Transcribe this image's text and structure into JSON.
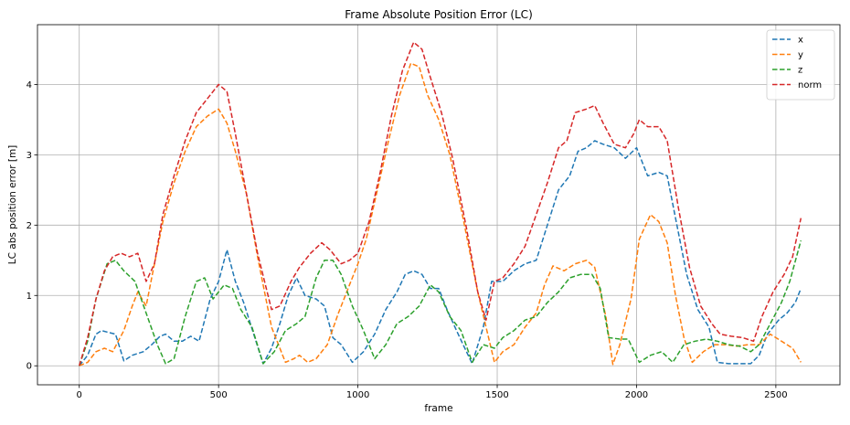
{
  "chart_data": {
    "type": "line",
    "title": "Frame Absolute Position Error (LC)",
    "xlabel": "frame",
    "ylabel": "LC abs position error [m]",
    "xlim": [
      -150,
      2730
    ],
    "ylim": [
      -0.27,
      4.85
    ],
    "xticks": [
      0,
      500,
      1000,
      1500,
      2000,
      2500
    ],
    "yticks": [
      0,
      1,
      2,
      3,
      4
    ],
    "grid": true,
    "legend": "top-right",
    "series": [
      {
        "name": "x",
        "color": "#1f77b4",
        "points": [
          [
            0,
            0
          ],
          [
            30,
            0.15
          ],
          [
            60,
            0.45
          ],
          [
            80,
            0.5
          ],
          [
            100,
            0.48
          ],
          [
            130,
            0.45
          ],
          [
            160,
            0.07
          ],
          [
            190,
            0.15
          ],
          [
            230,
            0.2
          ],
          [
            260,
            0.3
          ],
          [
            290,
            0.42
          ],
          [
            310,
            0.45
          ],
          [
            340,
            0.35
          ],
          [
            370,
            0.35
          ],
          [
            400,
            0.42
          ],
          [
            430,
            0.35
          ],
          [
            470,
            0.95
          ],
          [
            500,
            1.2
          ],
          [
            530,
            1.65
          ],
          [
            560,
            1.2
          ],
          [
            590,
            0.9
          ],
          [
            630,
            0.4
          ],
          [
            660,
            0.03
          ],
          [
            690,
            0.25
          ],
          [
            720,
            0.6
          ],
          [
            750,
            1.0
          ],
          [
            780,
            1.25
          ],
          [
            810,
            1.0
          ],
          [
            850,
            0.95
          ],
          [
            880,
            0.85
          ],
          [
            910,
            0.4
          ],
          [
            940,
            0.3
          ],
          [
            980,
            0.05
          ],
          [
            1020,
            0.2
          ],
          [
            1060,
            0.45
          ],
          [
            1100,
            0.8
          ],
          [
            1140,
            1.05
          ],
          [
            1170,
            1.3
          ],
          [
            1200,
            1.35
          ],
          [
            1230,
            1.3
          ],
          [
            1260,
            1.1
          ],
          [
            1290,
            1.1
          ],
          [
            1320,
            0.8
          ],
          [
            1360,
            0.45
          ],
          [
            1410,
            0.03
          ],
          [
            1450,
            0.55
          ],
          [
            1480,
            1.2
          ],
          [
            1520,
            1.2
          ],
          [
            1560,
            1.35
          ],
          [
            1600,
            1.45
          ],
          [
            1640,
            1.5
          ],
          [
            1680,
            2.0
          ],
          [
            1720,
            2.5
          ],
          [
            1760,
            2.7
          ],
          [
            1790,
            3.05
          ],
          [
            1820,
            3.1
          ],
          [
            1850,
            3.2
          ],
          [
            1880,
            3.15
          ],
          [
            1920,
            3.1
          ],
          [
            1960,
            2.95
          ],
          [
            2000,
            3.1
          ],
          [
            2040,
            2.7
          ],
          [
            2080,
            2.75
          ],
          [
            2110,
            2.7
          ],
          [
            2140,
            2.1
          ],
          [
            2180,
            1.3
          ],
          [
            2220,
            0.8
          ],
          [
            2260,
            0.55
          ],
          [
            2290,
            0.05
          ],
          [
            2330,
            0.03
          ],
          [
            2370,
            0.03
          ],
          [
            2410,
            0.03
          ],
          [
            2440,
            0.15
          ],
          [
            2470,
            0.45
          ],
          [
            2510,
            0.65
          ],
          [
            2540,
            0.75
          ],
          [
            2570,
            0.9
          ],
          [
            2590,
            1.1
          ]
        ]
      },
      {
        "name": "y",
        "color": "#ff7f0e",
        "points": [
          [
            0,
            0
          ],
          [
            30,
            0.05
          ],
          [
            60,
            0.2
          ],
          [
            90,
            0.25
          ],
          [
            120,
            0.2
          ],
          [
            160,
            0.5
          ],
          [
            190,
            0.85
          ],
          [
            210,
            1.05
          ],
          [
            240,
            0.85
          ],
          [
            270,
            1.45
          ],
          [
            300,
            2.05
          ],
          [
            340,
            2.6
          ],
          [
            380,
            3.05
          ],
          [
            420,
            3.4
          ],
          [
            460,
            3.55
          ],
          [
            500,
            3.65
          ],
          [
            530,
            3.45
          ],
          [
            560,
            3.05
          ],
          [
            600,
            2.45
          ],
          [
            640,
            1.55
          ],
          [
            690,
            0.55
          ],
          [
            740,
            0.05
          ],
          [
            770,
            0.1
          ],
          [
            790,
            0.15
          ],
          [
            820,
            0.05
          ],
          [
            850,
            0.1
          ],
          [
            890,
            0.3
          ],
          [
            930,
            0.75
          ],
          [
            970,
            1.15
          ],
          [
            1000,
            1.45
          ],
          [
            1030,
            1.8
          ],
          [
            1070,
            2.5
          ],
          [
            1110,
            3.2
          ],
          [
            1150,
            3.85
          ],
          [
            1190,
            4.3
          ],
          [
            1220,
            4.25
          ],
          [
            1250,
            3.85
          ],
          [
            1290,
            3.5
          ],
          [
            1330,
            3.0
          ],
          [
            1380,
            2.05
          ],
          [
            1430,
            1.05
          ],
          [
            1460,
            0.55
          ],
          [
            1490,
            0.05
          ],
          [
            1520,
            0.2
          ],
          [
            1560,
            0.3
          ],
          [
            1600,
            0.55
          ],
          [
            1640,
            0.75
          ],
          [
            1670,
            1.15
          ],
          [
            1700,
            1.42
          ],
          [
            1740,
            1.35
          ],
          [
            1780,
            1.45
          ],
          [
            1820,
            1.5
          ],
          [
            1850,
            1.4
          ],
          [
            1890,
            0.7
          ],
          [
            1915,
            0.02
          ],
          [
            1940,
            0.3
          ],
          [
            1980,
            0.95
          ],
          [
            2010,
            1.8
          ],
          [
            2050,
            2.15
          ],
          [
            2080,
            2.05
          ],
          [
            2110,
            1.75
          ],
          [
            2140,
            1.0
          ],
          [
            2170,
            0.4
          ],
          [
            2200,
            0.05
          ],
          [
            2240,
            0.2
          ],
          [
            2280,
            0.3
          ],
          [
            2320,
            0.3
          ],
          [
            2360,
            0.28
          ],
          [
            2400,
            0.3
          ],
          [
            2440,
            0.3
          ],
          [
            2480,
            0.45
          ],
          [
            2520,
            0.35
          ],
          [
            2560,
            0.25
          ],
          [
            2590,
            0.05
          ]
        ]
      },
      {
        "name": "z",
        "color": "#2ca02c",
        "points": [
          [
            0,
            0
          ],
          [
            30,
            0.35
          ],
          [
            60,
            0.95
          ],
          [
            100,
            1.45
          ],
          [
            130,
            1.5
          ],
          [
            160,
            1.35
          ],
          [
            200,
            1.2
          ],
          [
            240,
            0.75
          ],
          [
            280,
            0.3
          ],
          [
            310,
            0.03
          ],
          [
            340,
            0.1
          ],
          [
            380,
            0.7
          ],
          [
            420,
            1.2
          ],
          [
            450,
            1.25
          ],
          [
            480,
            0.95
          ],
          [
            520,
            1.15
          ],
          [
            550,
            1.1
          ],
          [
            580,
            0.8
          ],
          [
            620,
            0.55
          ],
          [
            660,
            0.03
          ],
          [
            700,
            0.2
          ],
          [
            740,
            0.5
          ],
          [
            780,
            0.6
          ],
          [
            810,
            0.7
          ],
          [
            850,
            1.25
          ],
          [
            880,
            1.5
          ],
          [
            910,
            1.5
          ],
          [
            940,
            1.3
          ],
          [
            980,
            0.85
          ],
          [
            1020,
            0.5
          ],
          [
            1060,
            0.1
          ],
          [
            1100,
            0.3
          ],
          [
            1140,
            0.6
          ],
          [
            1180,
            0.7
          ],
          [
            1220,
            0.85
          ],
          [
            1260,
            1.15
          ],
          [
            1290,
            1.05
          ],
          [
            1330,
            0.7
          ],
          [
            1370,
            0.5
          ],
          [
            1410,
            0.05
          ],
          [
            1450,
            0.3
          ],
          [
            1490,
            0.25
          ],
          [
            1520,
            0.4
          ],
          [
            1560,
            0.5
          ],
          [
            1600,
            0.65
          ],
          [
            1640,
            0.7
          ],
          [
            1680,
            0.9
          ],
          [
            1720,
            1.05
          ],
          [
            1760,
            1.25
          ],
          [
            1800,
            1.3
          ],
          [
            1840,
            1.3
          ],
          [
            1870,
            1.1
          ],
          [
            1900,
            0.4
          ],
          [
            1940,
            0.38
          ],
          [
            1970,
            0.38
          ],
          [
            2010,
            0.05
          ],
          [
            2050,
            0.15
          ],
          [
            2090,
            0.2
          ],
          [
            2130,
            0.05
          ],
          [
            2170,
            0.3
          ],
          [
            2210,
            0.35
          ],
          [
            2250,
            0.38
          ],
          [
            2290,
            0.35
          ],
          [
            2330,
            0.3
          ],
          [
            2370,
            0.28
          ],
          [
            2410,
            0.2
          ],
          [
            2440,
            0.3
          ],
          [
            2480,
            0.6
          ],
          [
            2520,
            0.9
          ],
          [
            2550,
            1.2
          ],
          [
            2590,
            1.78
          ]
        ]
      },
      {
        "name": "norm",
        "color": "#d62728",
        "points": [
          [
            0,
            0
          ],
          [
            30,
            0.4
          ],
          [
            60,
            0.95
          ],
          [
            90,
            1.35
          ],
          [
            120,
            1.55
          ],
          [
            150,
            1.6
          ],
          [
            180,
            1.55
          ],
          [
            210,
            1.6
          ],
          [
            240,
            1.2
          ],
          [
            270,
            1.45
          ],
          [
            300,
            2.15
          ],
          [
            340,
            2.7
          ],
          [
            380,
            3.2
          ],
          [
            420,
            3.6
          ],
          [
            460,
            3.8
          ],
          [
            500,
            4.0
          ],
          [
            530,
            3.9
          ],
          [
            560,
            3.3
          ],
          [
            600,
            2.45
          ],
          [
            640,
            1.6
          ],
          [
            690,
            0.8
          ],
          [
            720,
            0.85
          ],
          [
            760,
            1.2
          ],
          [
            790,
            1.4
          ],
          [
            830,
            1.6
          ],
          [
            870,
            1.75
          ],
          [
            900,
            1.65
          ],
          [
            940,
            1.45
          ],
          [
            970,
            1.5
          ],
          [
            1000,
            1.6
          ],
          [
            1040,
            2.05
          ],
          [
            1080,
            2.75
          ],
          [
            1120,
            3.55
          ],
          [
            1160,
            4.2
          ],
          [
            1200,
            4.6
          ],
          [
            1230,
            4.5
          ],
          [
            1260,
            4.1
          ],
          [
            1300,
            3.6
          ],
          [
            1340,
            2.95
          ],
          [
            1390,
            1.95
          ],
          [
            1430,
            1.05
          ],
          [
            1460,
            0.65
          ],
          [
            1490,
            1.2
          ],
          [
            1520,
            1.25
          ],
          [
            1560,
            1.45
          ],
          [
            1600,
            1.7
          ],
          [
            1640,
            2.15
          ],
          [
            1680,
            2.6
          ],
          [
            1720,
            3.1
          ],
          [
            1750,
            3.2
          ],
          [
            1780,
            3.6
          ],
          [
            1820,
            3.65
          ],
          [
            1850,
            3.7
          ],
          [
            1880,
            3.45
          ],
          [
            1920,
            3.15
          ],
          [
            1960,
            3.1
          ],
          [
            1990,
            3.3
          ],
          [
            2010,
            3.5
          ],
          [
            2040,
            3.4
          ],
          [
            2080,
            3.4
          ],
          [
            2110,
            3.2
          ],
          [
            2150,
            2.25
          ],
          [
            2190,
            1.4
          ],
          [
            2230,
            0.85
          ],
          [
            2270,
            0.6
          ],
          [
            2300,
            0.45
          ],
          [
            2340,
            0.42
          ],
          [
            2380,
            0.4
          ],
          [
            2420,
            0.35
          ],
          [
            2450,
            0.7
          ],
          [
            2490,
            1.05
          ],
          [
            2530,
            1.3
          ],
          [
            2560,
            1.55
          ],
          [
            2590,
            2.1
          ]
        ]
      }
    ]
  }
}
